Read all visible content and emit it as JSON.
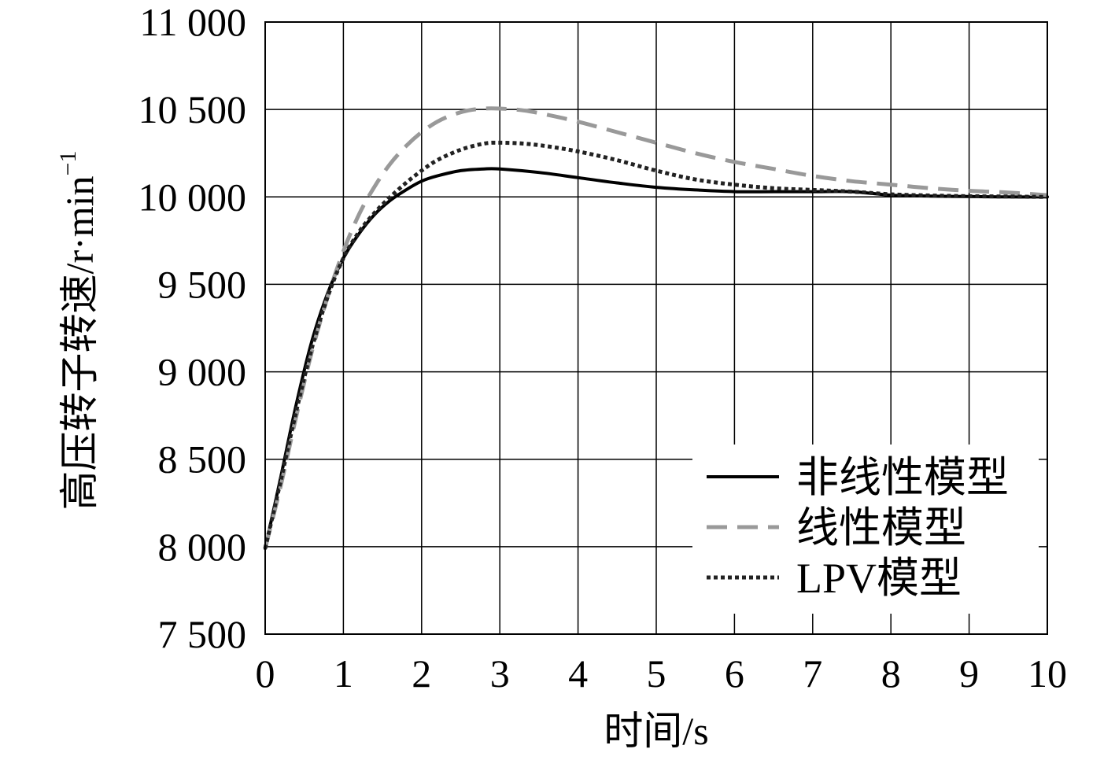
{
  "chart_data": {
    "type": "line",
    "title": "",
    "xlabel": "时间/s",
    "ylabel": "高压转子转速/r·min",
    "ylabel_superscript": "−1",
    "xlim": [
      0,
      10
    ],
    "ylim": [
      7500,
      11000
    ],
    "xticks": [
      0,
      1,
      2,
      3,
      4,
      5,
      6,
      7,
      8,
      9,
      10
    ],
    "xtick_labels": [
      "0",
      "1",
      "2",
      "3",
      "4",
      "5",
      "6",
      "7",
      "8",
      "9",
      "10"
    ],
    "yticks": [
      7500,
      8000,
      8500,
      9000,
      9500,
      10000,
      10500,
      11000
    ],
    "ytick_labels": [
      "7 500",
      "8 000",
      "8 500",
      "9 000",
      "9 500",
      "10 000",
      "10 500",
      "11 000"
    ],
    "grid": true,
    "legend_position": "bottom-right",
    "series": [
      {
        "name": "非线性模型",
        "style": "solid",
        "color": "#000000",
        "x": [
          0,
          0.2,
          0.4,
          0.6,
          0.8,
          1.0,
          1.2,
          1.4,
          1.6,
          1.8,
          2.0,
          2.2,
          2.5,
          2.8,
          3.0,
          3.5,
          4.0,
          4.5,
          5.0,
          5.5,
          6.0,
          6.5,
          7.0,
          7.5,
          8.0,
          8.5,
          9.0,
          9.5,
          10.0
        ],
        "y": [
          7990,
          8400,
          8820,
          9180,
          9450,
          9650,
          9790,
          9900,
          9980,
          10040,
          10090,
          10120,
          10150,
          10160,
          10160,
          10140,
          10110,
          10080,
          10055,
          10040,
          10030,
          10030,
          10030,
          10030,
          10010,
          10005,
          10002,
          10000,
          10000
        ]
      },
      {
        "name": "线性模型",
        "style": "dashed",
        "color": "#999999",
        "x": [
          0,
          0.2,
          0.4,
          0.6,
          0.8,
          1.0,
          1.2,
          1.4,
          1.6,
          1.8,
          2.0,
          2.2,
          2.4,
          2.6,
          2.8,
          3.0,
          3.3,
          3.6,
          4.0,
          4.5,
          5.0,
          5.5,
          6.0,
          6.5,
          7.0,
          7.5,
          8.0,
          8.5,
          9.0,
          9.5,
          10.0
        ],
        "y": [
          7990,
          8350,
          8750,
          9120,
          9430,
          9690,
          9900,
          10060,
          10190,
          10290,
          10370,
          10430,
          10470,
          10495,
          10505,
          10505,
          10495,
          10470,
          10430,
          10370,
          10310,
          10250,
          10200,
          10160,
          10120,
          10090,
          10070,
          10050,
          10035,
          10025,
          10010
        ]
      },
      {
        "name": "LPV模型",
        "style": "dotted",
        "color": "#222222",
        "x": [
          0,
          0.2,
          0.4,
          0.6,
          0.8,
          1.0,
          1.2,
          1.4,
          1.6,
          1.8,
          2.0,
          2.2,
          2.5,
          2.8,
          3.0,
          3.3,
          3.6,
          4.0,
          4.5,
          5.0,
          5.5,
          6.0,
          6.5,
          7.0,
          7.5,
          8.0,
          8.5,
          9.0,
          9.5,
          10.0
        ],
        "y": [
          7990,
          8380,
          8780,
          9140,
          9430,
          9650,
          9800,
          9910,
          10000,
          10080,
          10150,
          10210,
          10270,
          10305,
          10310,
          10305,
          10290,
          10260,
          10210,
          10150,
          10100,
          10070,
          10050,
          10040,
          10030,
          10015,
          10008,
          10004,
          10002,
          10000
        ]
      }
    ]
  }
}
